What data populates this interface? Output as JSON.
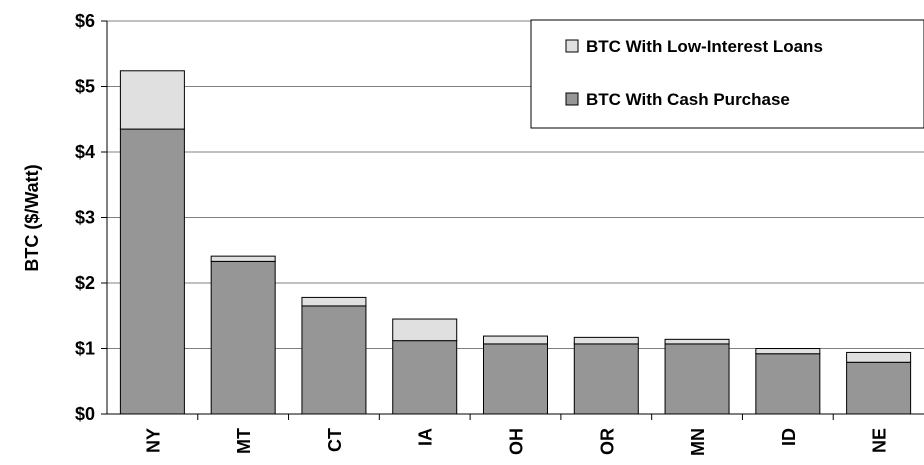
{
  "chart_data": {
    "type": "bar",
    "stacked": true,
    "categories": [
      "NY",
      "MT",
      "CT",
      "IA",
      "OH",
      "OR",
      "MN",
      "ID",
      "NE"
    ],
    "series": [
      {
        "name": "BTC With Cash Purchase",
        "values": [
          4.35,
          2.33,
          1.65,
          1.12,
          1.07,
          1.07,
          1.07,
          0.92,
          0.79
        ],
        "color": "#969696"
      },
      {
        "name": "BTC With Low-Interest Loans",
        "values": [
          0.89,
          0.08,
          0.13,
          0.33,
          0.12,
          0.1,
          0.07,
          0.08,
          0.15
        ],
        "color": "#e0e0e0"
      }
    ],
    "ylabel": "BTC ($/Watt)",
    "xlabel": "",
    "ylim": [
      0,
      6
    ],
    "yticks": [
      "$0",
      "$1",
      "$2",
      "$3",
      "$4",
      "$5",
      "$6"
    ],
    "grid": true,
    "legend": "top-right"
  }
}
